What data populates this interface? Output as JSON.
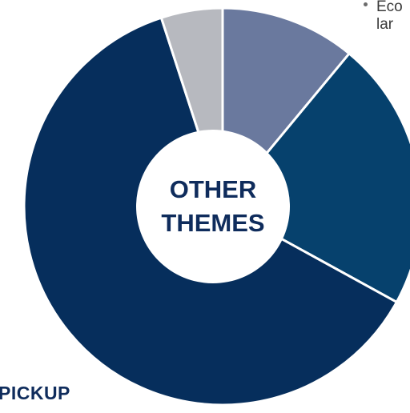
{
  "chart_data": {
    "type": "pie",
    "variant": "donut",
    "center_label": [
      "OTHER",
      "THEMES"
    ],
    "slices": [
      {
        "share": 11.0,
        "color": "#6a799e"
      },
      {
        "share": 22.0,
        "color": "#06416d"
      },
      {
        "share": 62.0,
        "color": "#062e5c"
      },
      {
        "share": 5.0,
        "color": "#b7b9bf"
      }
    ],
    "start_angle_deg": 0,
    "direction": "clockwise",
    "colors": {
      "center_fill": "#ffffff",
      "center_text": "#0f2c5c",
      "separator": "#ffffff"
    }
  },
  "bullet_fragment": {
    "line1": "Eco",
    "line2": "lar"
  },
  "corner_label": "PICKUP"
}
